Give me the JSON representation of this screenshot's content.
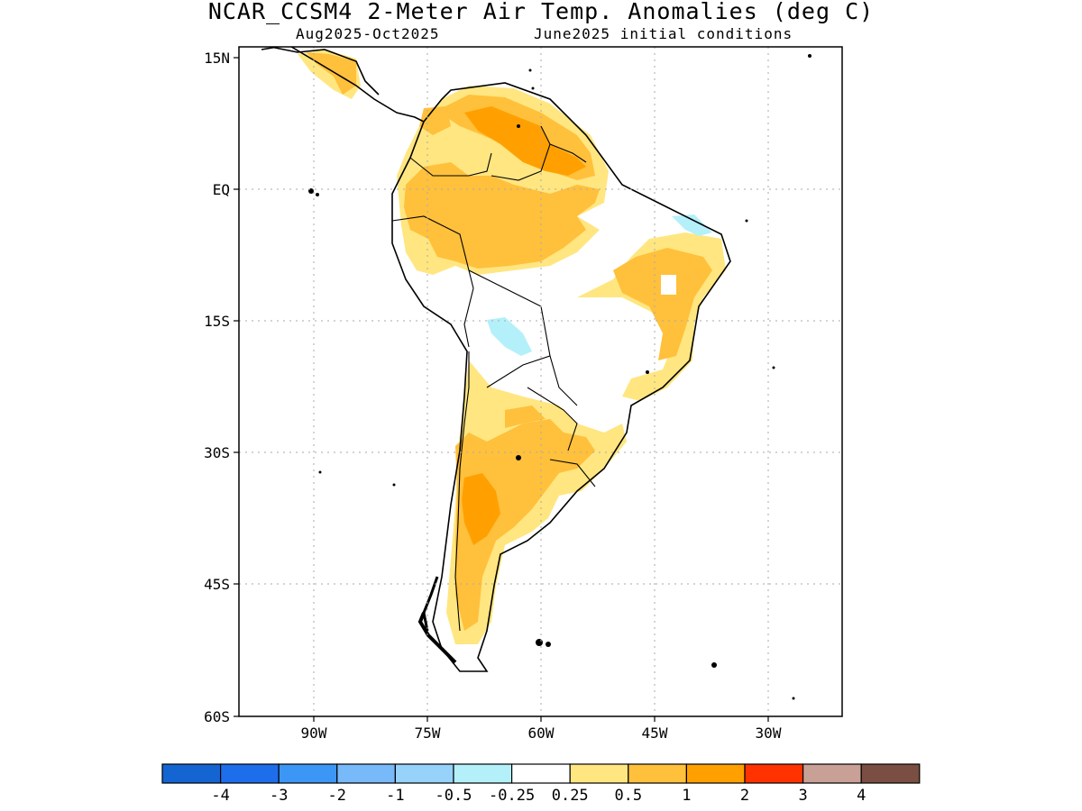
{
  "title": "NCAR_CCSM4 2-Meter Air Temp. Anomalies (deg C)",
  "subtitle_left": "Aug2025-Oct2025",
  "subtitle_right": "June2025 initial conditions",
  "map": {
    "lat_labels": [
      "15N",
      "EQ",
      "15S",
      "30S",
      "45S",
      "60S"
    ],
    "lon_labels": [
      "90W",
      "75W",
      "60W",
      "45W",
      "30W"
    ],
    "lat_range": [
      -60,
      15
    ],
    "lon_range": [
      -100,
      -20
    ],
    "grid": "dotted",
    "colors": {
      "pos_0_25_0_5": "#ffe680",
      "pos_0_5_1": "#ffc03c",
      "pos_1_2": "#ffa000",
      "neg_0_25_0_5": "#b4f0fa"
    }
  },
  "colorbar": {
    "tick_labels": [
      "-4",
      "-3",
      "-2",
      "-1",
      "-0.5",
      "-0.25",
      "0.25",
      "0.5",
      "1",
      "2",
      "3",
      "4"
    ],
    "colors": [
      "#1464d2",
      "#1e6eeb",
      "#3c96f5",
      "#78b9fa",
      "#96d2fa",
      "#b4f0fa",
      "#ffffff",
      "#ffe680",
      "#ffc03c",
      "#ffa000",
      "#ff3200",
      "#c8a096",
      "#7a4e42"
    ]
  }
}
